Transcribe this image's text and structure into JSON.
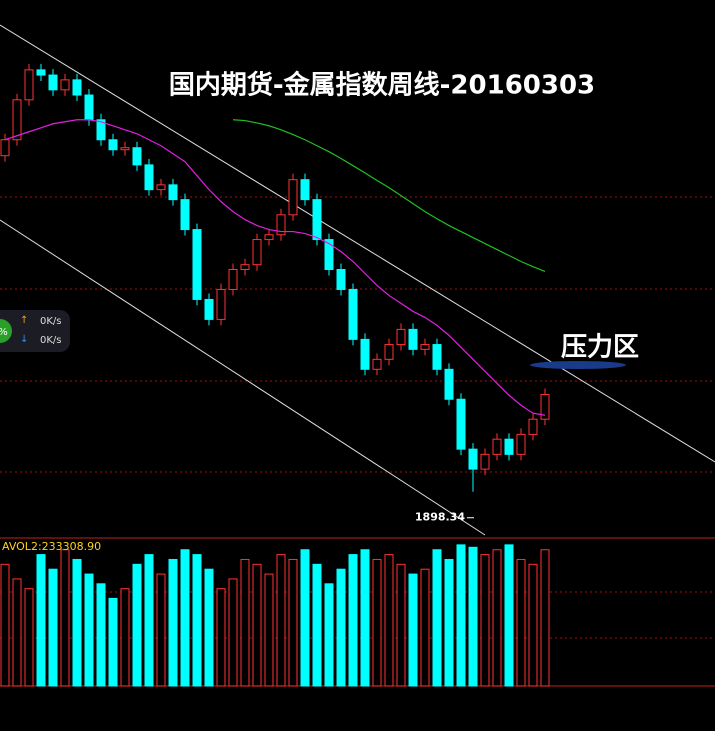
{
  "chart_data": {
    "type": "candlestick",
    "title": "国内期货-金属指数周线-20160303",
    "annotation": "压力区",
    "ylim": [
      1790,
      3130
    ],
    "up_color": "#ff3232",
    "down_color": "#00ffff",
    "open": [
      2740,
      2780,
      2880,
      2955,
      2942,
      2905,
      2930,
      2892,
      2830,
      2780,
      2755,
      2760,
      2717,
      2655,
      2667,
      2630,
      2555,
      2380,
      2330,
      2405,
      2455,
      2467,
      2530,
      2542,
      2592,
      2680,
      2630,
      2530,
      2455,
      2405,
      2280,
      2205,
      2230,
      2267,
      2305,
      2255,
      2267,
      2205,
      2130,
      2005,
      1955,
      1992,
      2030,
      1992,
      2042,
      2080
    ],
    "high": [
      2795,
      2895,
      2970,
      2970,
      2957,
      2945,
      2945,
      2907,
      2845,
      2795,
      2775,
      2775,
      2732,
      2682,
      2682,
      2645,
      2570,
      2395,
      2420,
      2470,
      2482,
      2545,
      2557,
      2607,
      2695,
      2695,
      2645,
      2545,
      2470,
      2420,
      2295,
      2245,
      2282,
      2320,
      2320,
      2282,
      2282,
      2220,
      2145,
      2020,
      2007,
      2045,
      2045,
      2057,
      2095,
      2157
    ],
    "low": [
      2725,
      2765,
      2865,
      2927,
      2890,
      2890,
      2877,
      2815,
      2765,
      2740,
      2740,
      2702,
      2640,
      2640,
      2615,
      2540,
      2365,
      2315,
      2315,
      2390,
      2440,
      2452,
      2515,
      2527,
      2577,
      2615,
      2515,
      2440,
      2390,
      2265,
      2190,
      2190,
      2215,
      2252,
      2240,
      2240,
      2190,
      2115,
      1990,
      1898.34,
      1940,
      1977,
      1977,
      1977,
      2027,
      2065
    ],
    "close": [
      2780,
      2880,
      2955,
      2942,
      2905,
      2930,
      2892,
      2830,
      2780,
      2755,
      2760,
      2717,
      2655,
      2667,
      2630,
      2555,
      2380,
      2330,
      2405,
      2455,
      2467,
      2530,
      2542,
      2592,
      2680,
      2630,
      2530,
      2455,
      2405,
      2280,
      2205,
      2230,
      2267,
      2305,
      2255,
      2267,
      2205,
      2130,
      2005,
      1955,
      1992,
      2030,
      1992,
      2042,
      2080,
      2142
    ],
    "series": [
      {
        "color": "#e020e0",
        "values": [
          2780,
          2790,
          2800,
          2810,
          2820,
          2825,
          2830,
          2830,
          2825,
          2815,
          2805,
          2795,
          2780,
          2765,
          2745,
          2725,
          2690,
          2655,
          2625,
          2600,
          2580,
          2565,
          2555,
          2550,
          2550,
          2545,
          2535,
          2520,
          2500,
          2475,
          2445,
          2415,
          2390,
          2370,
          2350,
          2335,
          2315,
          2290,
          2260,
          2230,
          2200,
          2170,
          2140,
          2115,
          2095,
          2090
        ]
      },
      {
        "color": "#20c020",
        "values": [
          null,
          null,
          null,
          null,
          null,
          null,
          null,
          null,
          null,
          null,
          null,
          null,
          null,
          null,
          null,
          null,
          null,
          null,
          null,
          2830,
          2828,
          2822,
          2815,
          2805,
          2793,
          2780,
          2765,
          2750,
          2733,
          2715,
          2697,
          2678,
          2660,
          2640,
          2620,
          2600,
          2582,
          2565,
          2550,
          2535,
          2520,
          2505,
          2490,
          2475,
          2462,
          2450
        ]
      }
    ],
    "volume": {
      "label": "AVOL2:233308.90",
      "ylim": [
        0,
        300000
      ],
      "values": [
        250000,
        220000,
        200000,
        270000,
        240000,
        280000,
        260000,
        230000,
        210000,
        180000,
        200000,
        250000,
        270000,
        230000,
        260000,
        280000,
        270000,
        240000,
        200000,
        220000,
        260000,
        250000,
        230000,
        270000,
        260000,
        280000,
        250000,
        210000,
        240000,
        270000,
        280000,
        260000,
        270000,
        250000,
        230000,
        240000,
        280000,
        260000,
        290000,
        285000,
        270000,
        280000,
        290000,
        260000,
        250000,
        280000
      ]
    }
  },
  "widget": {
    "percent": "%",
    "up_arrow": "↑",
    "up_speed": "0K/s",
    "down_arrow": "↓",
    "down_speed": "0K/s"
  }
}
